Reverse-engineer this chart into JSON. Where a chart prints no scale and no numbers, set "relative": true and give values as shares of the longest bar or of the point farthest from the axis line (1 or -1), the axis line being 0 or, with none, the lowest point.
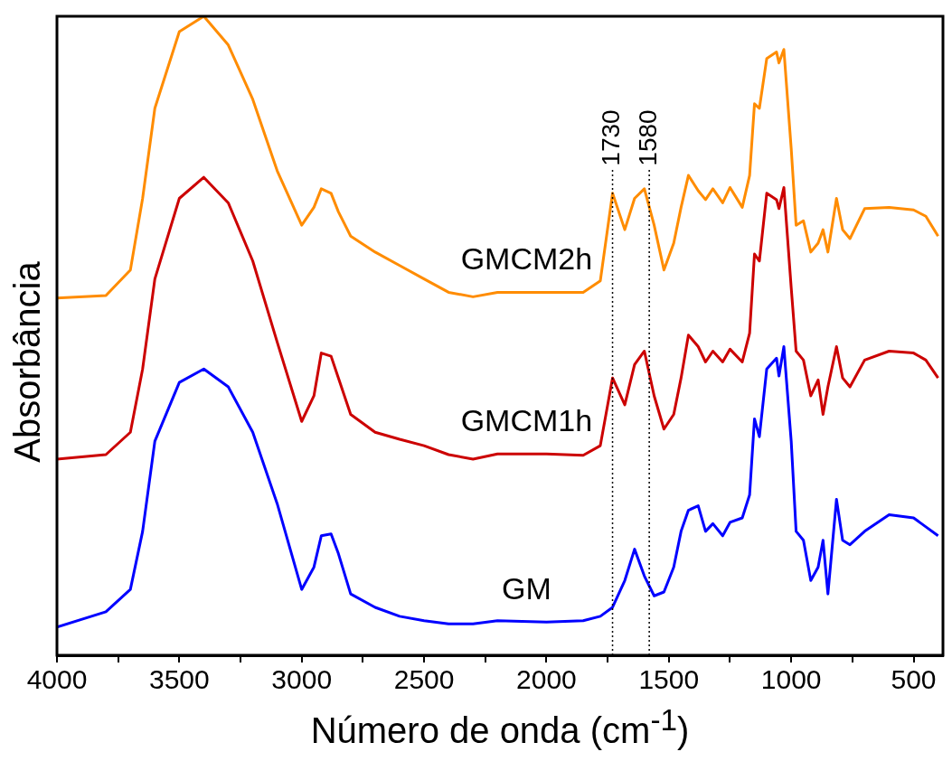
{
  "chart_data": {
    "type": "line",
    "relative": true,
    "xlabel": "Número de onda (cm$^{-1}$)",
    "ylabel": "Absorbância",
    "xlim": [
      4000,
      380
    ],
    "xticks": [
      4000,
      {
        "value": 3750,
        "label": null
      },
      3500,
      {
        "value": 3250,
        "label": null
      },
      3000,
      {
        "value": 2750,
        "label": null
      },
      2500,
      {
        "value": 2250,
        "label": null
      },
      2000,
      {
        "value": 1750,
        "label": null
      },
      1500,
      {
        "value": 1250,
        "label": null
      },
      1000,
      {
        "value": 750,
        "label": null
      },
      500
    ],
    "tick_labels": "x",
    "grid": false,
    "legend": false,
    "marker": "none",
    "line_style": "solid",
    "x": [
      4000,
      3800,
      3700,
      3650,
      3600,
      3500,
      3400,
      3300,
      3200,
      3100,
      3000,
      2950,
      2920,
      2880,
      2850,
      2800,
      2700,
      2600,
      2500,
      2400,
      2300,
      2200,
      2000,
      1850,
      1780,
      1730,
      1680,
      1640,
      1600,
      1560,
      1520,
      1480,
      1450,
      1420,
      1380,
      1350,
      1320,
      1280,
      1250,
      1200,
      1170,
      1150,
      1130,
      1100,
      1060,
      1050,
      1030,
      1000,
      980,
      950,
      920,
      890,
      870,
      850,
      815,
      790,
      760,
      700,
      600,
      500,
      450,
      400
    ],
    "series": [
      {
        "name": "GMCM2h",
        "color": "#ff8c00",
        "values": [
          0.559,
          0.563,
          0.603,
          0.715,
          0.856,
          0.976,
          1,
          0.955,
          0.87,
          0.758,
          0.673,
          0.701,
          0.73,
          0.723,
          0.694,
          0.656,
          0.631,
          0.61,
          0.589,
          0.568,
          0.561,
          0.568,
          0.568,
          0.568,
          0.586,
          0.723,
          0.666,
          0.715,
          0.73,
          0.673,
          0.603,
          0.645,
          0.701,
          0.751,
          0.727,
          0.713,
          0.73,
          0.708,
          0.732,
          0.701,
          0.751,
          0.863,
          0.856,
          0.934,
          0.944,
          0.927,
          0.948,
          0.793,
          0.673,
          0.68,
          0.631,
          0.645,
          0.666,
          0.631,
          0.715,
          0.666,
          0.652,
          0.699,
          0.701,
          0.697,
          0.687,
          0.656
        ]
      },
      {
        "name": "GMCM1h",
        "color": "#cc0000",
        "values": [
          0.307,
          0.314,
          0.349,
          0.448,
          0.589,
          0.715,
          0.748,
          0.708,
          0.617,
          0.49,
          0.366,
          0.406,
          0.473,
          0.468,
          0.434,
          0.377,
          0.349,
          0.338,
          0.328,
          0.314,
          0.307,
          0.315,
          0.315,
          0.313,
          0.328,
          0.434,
          0.392,
          0.455,
          0.476,
          0.406,
          0.354,
          0.377,
          0.434,
          0.501,
          0.483,
          0.459,
          0.476,
          0.459,
          0.479,
          0.459,
          0.504,
          0.628,
          0.617,
          0.723,
          0.713,
          0.699,
          0.732,
          0.575,
          0.476,
          0.462,
          0.406,
          0.431,
          0.377,
          0.42,
          0.483,
          0.434,
          0.42,
          0.462,
          0.476,
          0.473,
          0.462,
          0.434
        ]
      },
      {
        "name": "GM",
        "color": "#0000ff",
        "values": [
          0.044,
          0.068,
          0.103,
          0.194,
          0.335,
          0.427,
          0.448,
          0.42,
          0.349,
          0.237,
          0.103,
          0.138,
          0.187,
          0.19,
          0.159,
          0.096,
          0.075,
          0.061,
          0.054,
          0.049,
          0.049,
          0.054,
          0.052,
          0.054,
          0.061,
          0.075,
          0.117,
          0.166,
          0.124,
          0.093,
          0.099,
          0.138,
          0.194,
          0.227,
          0.234,
          0.194,
          0.206,
          0.187,
          0.208,
          0.215,
          0.251,
          0.37,
          0.342,
          0.448,
          0.465,
          0.437,
          0.483,
          0.335,
          0.194,
          0.18,
          0.117,
          0.138,
          0.18,
          0.096,
          0.244,
          0.18,
          0.173,
          0.194,
          0.22,
          0.215,
          0.201,
          0.187
        ]
      }
    ],
    "ref_lines": [
      {
        "axis": "x",
        "value": 1730,
        "label": "1730",
        "color": "#000000",
        "line_style": "dotted"
      },
      {
        "axis": "x",
        "value": 1580,
        "label": "1580",
        "color": "#000000",
        "line_style": "dotted"
      }
    ]
  }
}
